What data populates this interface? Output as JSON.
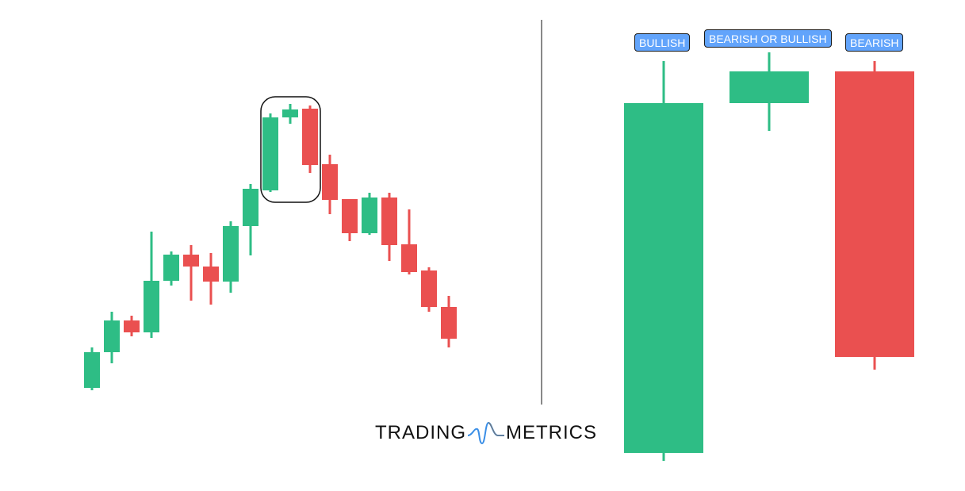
{
  "left_chart": {
    "candles": [
      "bullish",
      "bullish",
      "bearish",
      "bullish",
      "bullish",
      "bearish",
      "bearish",
      "bullish",
      "bullish",
      "bullish",
      "bullish",
      "bearish",
      "bearish",
      "bearish",
      "bullish",
      "bearish",
      "bearish",
      "bearish",
      "bearish"
    ],
    "highlighted_pattern": "three candles at the top of the uptrend"
  },
  "right_diagram": {
    "candles": [
      {
        "label": "BULLISH",
        "direction": "bullish"
      },
      {
        "label": "BEARISH OR BULLISH",
        "direction": "bullish"
      },
      {
        "label": "BEARISH",
        "direction": "bearish"
      }
    ]
  },
  "logo": {
    "left": "TRADING",
    "right": "METRICS"
  },
  "colors": {
    "bullish": "#2ebd85",
    "bearish": "#ea5050",
    "label_bg": "#62a4fb",
    "divider": "#888888"
  }
}
